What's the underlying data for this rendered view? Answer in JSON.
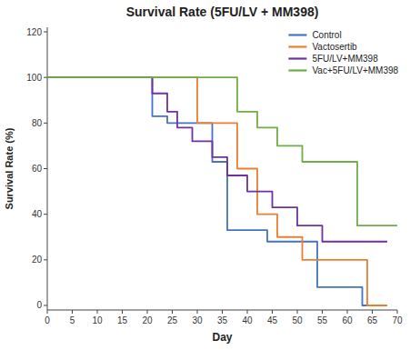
{
  "chart_data": {
    "type": "line",
    "title": "Survival Rate (5FU/LV + MM398)",
    "xlabel": "Day",
    "ylabel": "Survival Rate (%)",
    "xlim": [
      0,
      70
    ],
    "ylim": [
      -2,
      122
    ],
    "xticks": [
      0,
      5,
      10,
      15,
      20,
      25,
      30,
      35,
      40,
      45,
      50,
      55,
      60,
      65,
      70
    ],
    "yticks": [
      0,
      20,
      40,
      60,
      80,
      100,
      120
    ],
    "legend": "upper right",
    "series": [
      {
        "name": "Control",
        "color": "#4472C4",
        "x": [
          0,
          21,
          21,
          24,
          24,
          28,
          28,
          33,
          33,
          36,
          36,
          40,
          40,
          44,
          44,
          49,
          49,
          54,
          54,
          58,
          58,
          63,
          63,
          68
        ],
        "values": [
          100,
          100,
          83,
          83,
          80,
          80,
          80,
          80,
          63,
          63,
          33,
          33,
          33,
          33,
          28,
          28,
          28,
          28,
          8,
          8,
          8,
          8,
          0,
          0
        ]
      },
      {
        "name": "Vactosertib",
        "color": "#ED7D31",
        "x": [
          0,
          27,
          27,
          30,
          30,
          35,
          35,
          38,
          38,
          42,
          42,
          46,
          46,
          51,
          51,
          61,
          61,
          64,
          64,
          68
        ],
        "values": [
          100,
          100,
          100,
          100,
          80,
          80,
          80,
          80,
          60,
          60,
          40,
          40,
          30,
          30,
          20,
          20,
          20,
          20,
          0,
          0
        ]
      },
      {
        "name": "5FU/LV+MM398",
        "color": "#7030A0",
        "x": [
          0,
          21,
          21,
          24,
          24,
          26,
          26,
          29,
          29,
          33,
          33,
          36,
          36,
          40,
          40,
          45,
          45,
          50,
          50,
          55,
          55,
          65,
          65,
          68
        ],
        "values": [
          100,
          100,
          93,
          93,
          85,
          85,
          78,
          78,
          72,
          72,
          65,
          65,
          57,
          57,
          50,
          50,
          43,
          43,
          35,
          35,
          28,
          28,
          28,
          28
        ]
      },
      {
        "name": "Vac+5FU/LV+MM398",
        "color": "#70AD47",
        "x": [
          0,
          38,
          38,
          42,
          42,
          46,
          46,
          51,
          51,
          56,
          56,
          62,
          62,
          66,
          66,
          70
        ],
        "values": [
          100,
          100,
          85,
          85,
          78,
          78,
          70,
          70,
          63,
          63,
          63,
          63,
          35,
          35,
          35,
          35
        ]
      }
    ]
  }
}
